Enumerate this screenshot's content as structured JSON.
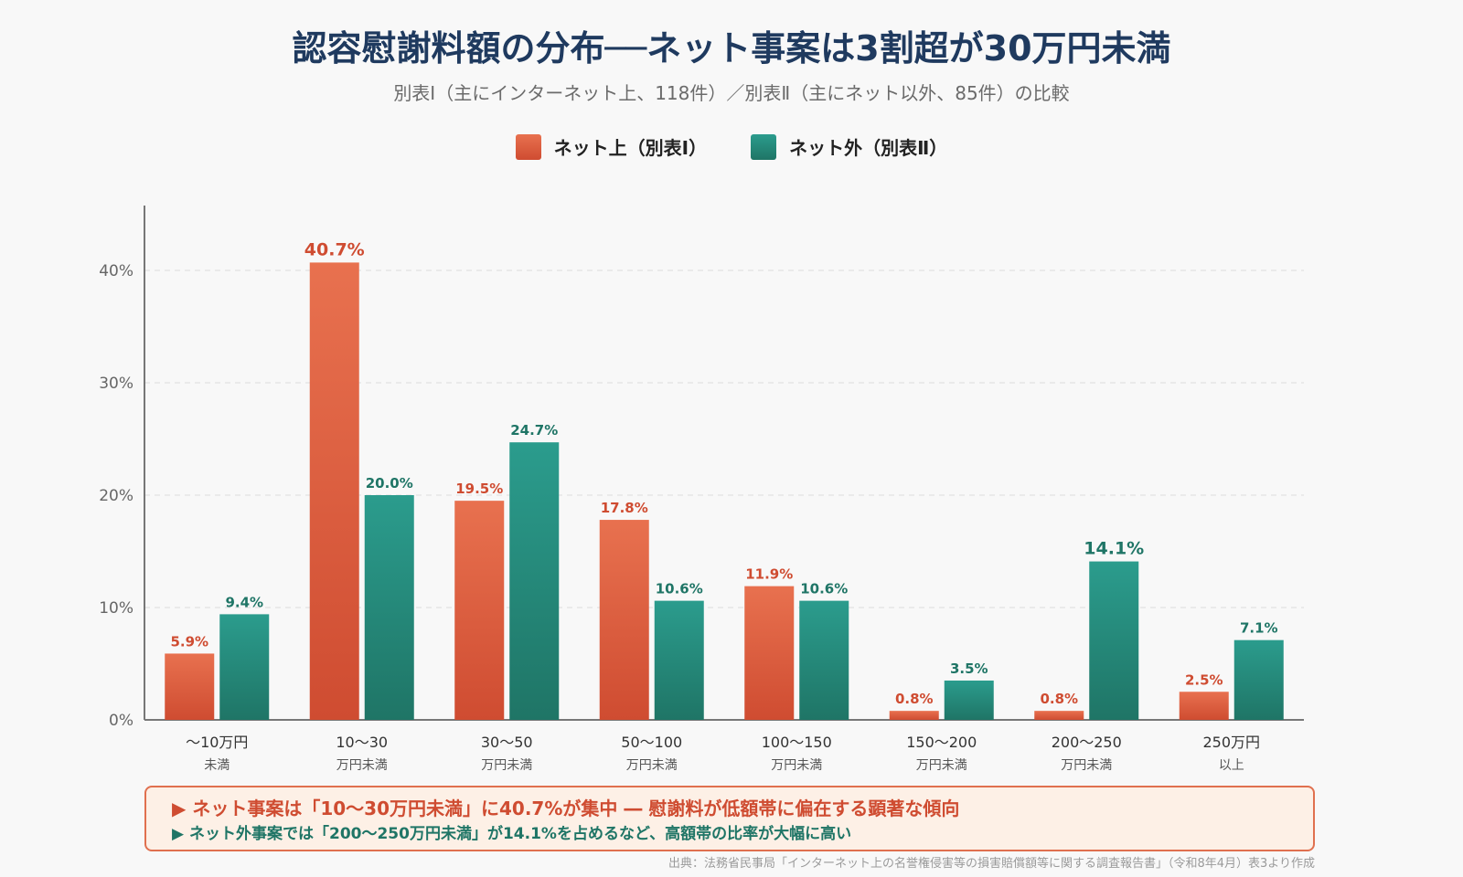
{
  "title": "認容慰謝料額の分布──ネット事案は3割超が30万円未満",
  "subtitle": "別表Ⅰ（主にインターネット上、118件）／別表Ⅱ（主にネット以外、85件）の比較",
  "legend": {
    "net": "ネット上（別表Ⅰ）",
    "offline": "ネット外（別表Ⅱ）"
  },
  "notes": {
    "line1": "▶ ネット事案は「10〜30万円未満」に40.7%が集中 ― 慰謝料が低額帯に偏在する顕著な傾向",
    "line2": "▶ ネット外事案では「200〜250万円未満」が14.1%を占めるなど、高額帯の比率が大幅に高い"
  },
  "source": "出典：法務省民事局「インターネット上の名誉権侵害等の損害賠償額等に関する調査報告書」（令和8年4月）表3より作成",
  "colors": {
    "net_top": "#e8714f",
    "net_bottom": "#cf4c31",
    "offline_top": "#2b9c8d",
    "offline_bottom": "#1f7566",
    "net_label": "#cf4c31",
    "offline_label": "#1f7566",
    "title": "#1f3a5f"
  },
  "chart_data": {
    "type": "bar",
    "categories": [
      [
        "〜10万円",
        "未満"
      ],
      [
        "10〜30",
        "万円未満"
      ],
      [
        "30〜50",
        "万円未満"
      ],
      [
        "50〜100",
        "万円未満"
      ],
      [
        "100〜150",
        "万円未満"
      ],
      [
        "150〜200",
        "万円未満"
      ],
      [
        "200〜250",
        "万円未満"
      ],
      [
        "250万円",
        "以上"
      ]
    ],
    "series": [
      {
        "name": "ネット上（別表Ⅰ）",
        "key": "net",
        "values": [
          5.9,
          40.7,
          19.5,
          17.8,
          11.9,
          0.8,
          0.8,
          2.5
        ]
      },
      {
        "name": "ネット外（別表Ⅱ）",
        "key": "offline",
        "values": [
          9.4,
          20.0,
          24.7,
          10.6,
          10.6,
          3.5,
          14.1,
          7.1
        ]
      }
    ],
    "highlight": {
      "net": 1,
      "offline": 6
    },
    "yticks": [
      "0%",
      "10%",
      "20%",
      "30%",
      "40%"
    ],
    "yunit": "%",
    "ylim": [
      0,
      45
    ],
    "grid": true
  }
}
